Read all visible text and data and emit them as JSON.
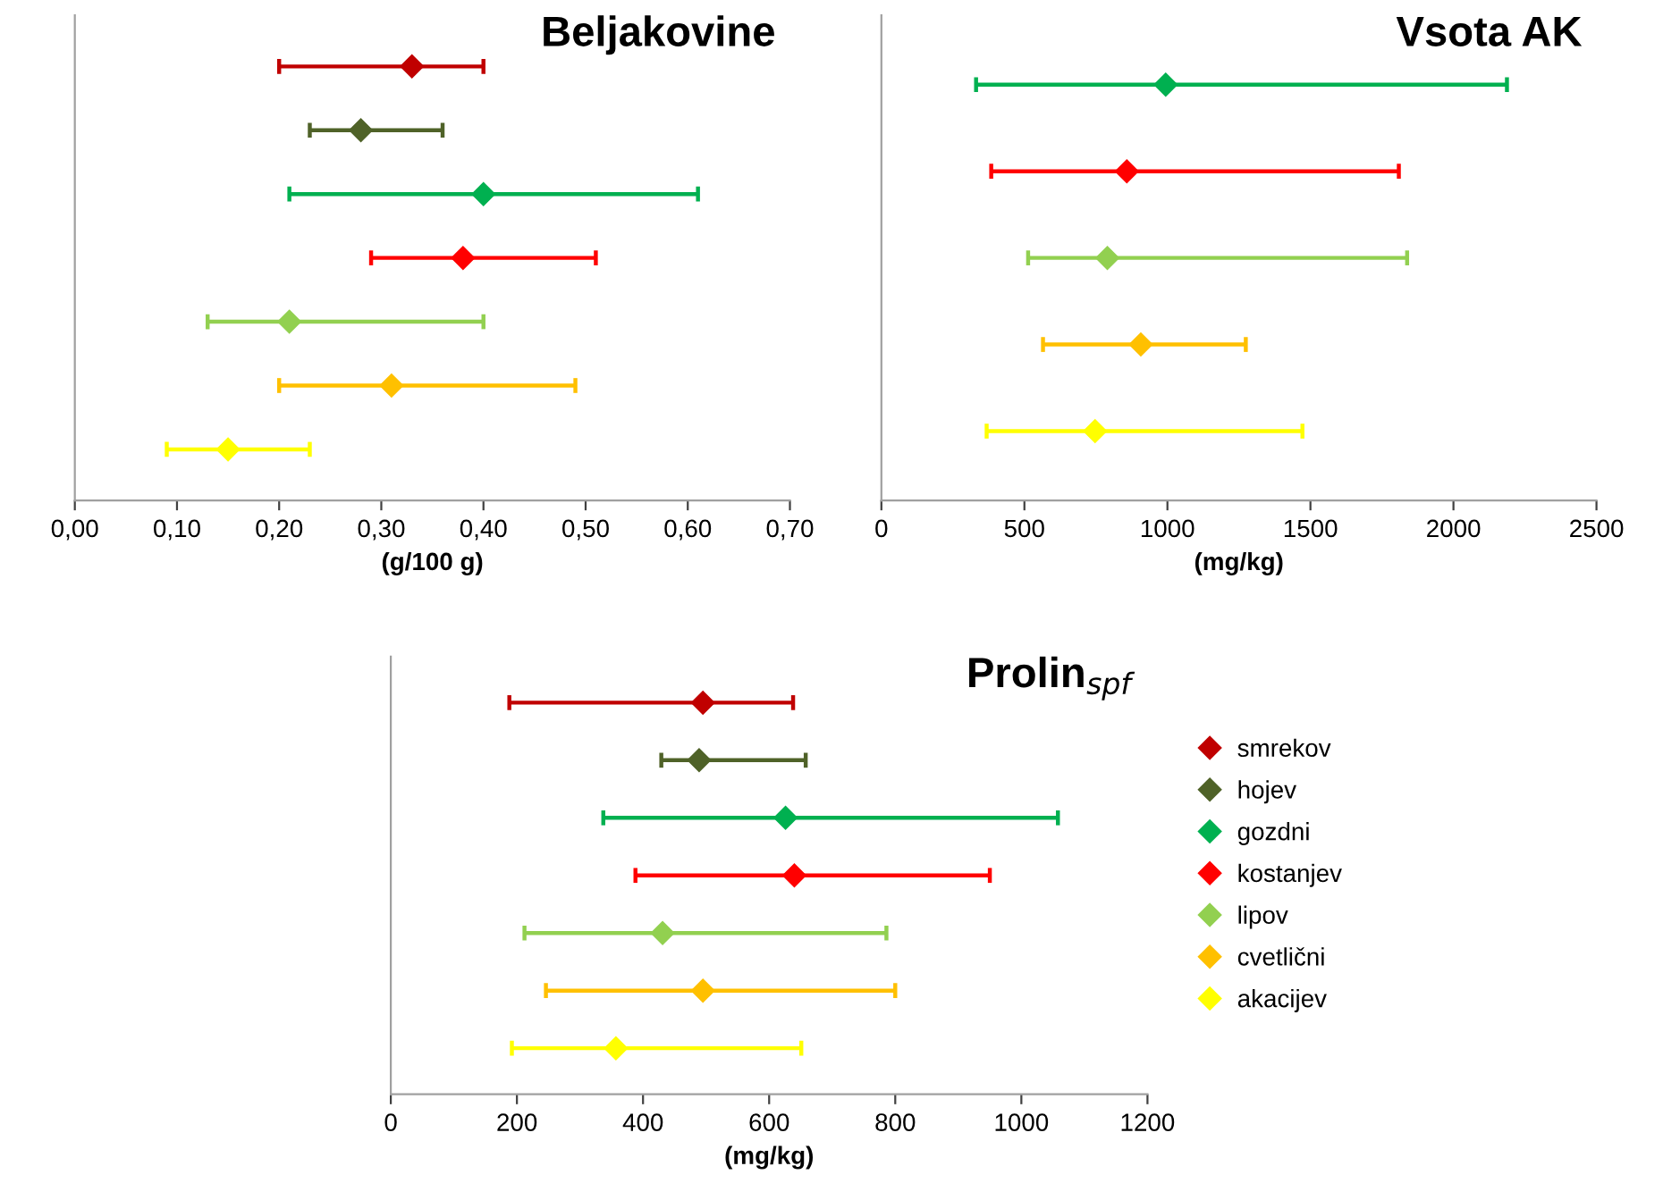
{
  "chart_data": [
    {
      "type": "scatter",
      "orientation": "horizontal",
      "title": "Beljakovine",
      "xlabel": "(g/100 g)",
      "categories": [
        null,
        null,
        null,
        null,
        null,
        null,
        null
      ],
      "marker": "diamond",
      "grid": false,
      "tick_labels": "x",
      "xlim": [
        0,
        0.7
      ],
      "xticks": [
        {
          "value": 0,
          "label": "0,00"
        },
        {
          "value": 0.1,
          "label": "0,10"
        },
        {
          "value": 0.2,
          "label": "0,20"
        },
        {
          "value": 0.3,
          "label": "0,30"
        },
        {
          "value": 0.4,
          "label": "0,40"
        },
        {
          "value": 0.5,
          "label": "0,50"
        },
        {
          "value": 0.6,
          "label": "0,60"
        },
        {
          "value": 0.7,
          "label": "0,70"
        }
      ],
      "series": [
        {
          "color": "#c00000",
          "values": [
            0.33,
            null,
            null,
            null,
            null,
            null,
            null
          ],
          "errors": [
            [
              0.2,
              0.4
            ],
            null,
            null,
            null,
            null,
            null,
            null
          ]
        },
        {
          "color": "#4f6228",
          "values": [
            null,
            0.28,
            null,
            null,
            null,
            null,
            null
          ],
          "errors": [
            null,
            [
              0.23,
              0.36
            ],
            null,
            null,
            null,
            null,
            null
          ]
        },
        {
          "color": "#00b050",
          "values": [
            null,
            null,
            0.4,
            null,
            null,
            null,
            null
          ],
          "errors": [
            null,
            null,
            [
              0.21,
              0.61
            ],
            null,
            null,
            null,
            null
          ]
        },
        {
          "color": "#ff0000",
          "values": [
            null,
            null,
            null,
            0.38,
            null,
            null,
            null
          ],
          "errors": [
            null,
            null,
            null,
            [
              0.29,
              0.51
            ],
            null,
            null,
            null
          ]
        },
        {
          "color": "#92d050",
          "values": [
            null,
            null,
            null,
            null,
            0.21,
            null,
            null
          ],
          "errors": [
            null,
            null,
            null,
            null,
            [
              0.13,
              0.4
            ],
            null,
            null
          ]
        },
        {
          "color": "#ffc000",
          "values": [
            null,
            null,
            null,
            null,
            null,
            0.31,
            null
          ],
          "errors": [
            null,
            null,
            null,
            null,
            null,
            [
              0.2,
              0.49
            ],
            null
          ]
        },
        {
          "color": "#ffff00",
          "values": [
            null,
            null,
            null,
            null,
            null,
            null,
            0.15
          ],
          "errors": [
            null,
            null,
            null,
            null,
            null,
            null,
            [
              0.09,
              0.23
            ]
          ]
        }
      ]
    },
    {
      "type": "scatter",
      "orientation": "horizontal",
      "title": "Vsota AK",
      "xlabel": "(mg/kg)",
      "categories": [
        null,
        null,
        null,
        null,
        null
      ],
      "marker": "diamond",
      "grid": false,
      "tick_labels": "x",
      "xlim": [
        0,
        2500
      ],
      "xticks": [
        0,
        500,
        1000,
        1500,
        2000,
        2500
      ],
      "series": [
        {
          "color": "#00b050",
          "values": [
            994,
            null,
            null,
            null,
            null
          ],
          "errors": [
            [
              331,
              2187
            ],
            null,
            null,
            null,
            null
          ]
        },
        {
          "color": "#ff0000",
          "values": [
            null,
            858,
            null,
            null,
            null
          ],
          "errors": [
            null,
            [
              384,
              1809
            ],
            null,
            null,
            null
          ]
        },
        {
          "color": "#92d050",
          "values": [
            null,
            null,
            790,
            null,
            null
          ],
          "errors": [
            null,
            null,
            [
              513,
              1838
            ],
            null,
            null
          ]
        },
        {
          "color": "#ffc000",
          "values": [
            null,
            null,
            null,
            907,
            null
          ],
          "errors": [
            null,
            null,
            null,
            [
              565,
              1274
            ],
            null
          ]
        },
        {
          "color": "#ffff00",
          "values": [
            null,
            null,
            null,
            null,
            747
          ],
          "errors": [
            null,
            null,
            null,
            null,
            [
              368,
              1472
            ]
          ]
        }
      ]
    },
    {
      "type": "scatter",
      "orientation": "horizontal",
      "title": "Prolin$_{spf}$",
      "xlabel": "(mg/kg)",
      "categories": [
        null,
        null,
        null,
        null,
        null,
        null,
        null
      ],
      "marker": "diamond",
      "grid": false,
      "tick_labels": "x",
      "legend": "right",
      "xlim": [
        0,
        1200
      ],
      "xticks": [
        0,
        200,
        400,
        600,
        800,
        1000,
        1200
      ],
      "series": [
        {
          "name": "smrekov",
          "color": "#c00000",
          "values": [
            495,
            null,
            null,
            null,
            null,
            null,
            null
          ],
          "errors": [
            [
              188,
              638
            ],
            null,
            null,
            null,
            null,
            null,
            null
          ]
        },
        {
          "name": "hojev",
          "color": "#4f6228",
          "values": [
            null,
            489,
            null,
            null,
            null,
            null,
            null
          ],
          "errors": [
            null,
            [
              429,
              658
            ],
            null,
            null,
            null,
            null,
            null
          ]
        },
        {
          "name": "gozdni",
          "color": "#00b050",
          "values": [
            null,
            null,
            626,
            null,
            null,
            null,
            null
          ],
          "errors": [
            null,
            null,
            [
              337,
              1058
            ],
            null,
            null,
            null,
            null
          ]
        },
        {
          "name": "kostanjev",
          "color": "#ff0000",
          "values": [
            null,
            null,
            null,
            640,
            null,
            null,
            null
          ],
          "errors": [
            null,
            null,
            null,
            [
              388,
              950
            ],
            null,
            null,
            null
          ]
        },
        {
          "name": "lipov",
          "color": "#92d050",
          "values": [
            null,
            null,
            null,
            null,
            431,
            null,
            null
          ],
          "errors": [
            null,
            null,
            null,
            null,
            [
              212,
              786
            ],
            null,
            null
          ]
        },
        {
          "name": "cvetlični",
          "color": "#ffc000",
          "values": [
            null,
            null,
            null,
            null,
            null,
            495,
            null
          ],
          "errors": [
            null,
            null,
            null,
            null,
            null,
            [
              246,
              800
            ],
            null
          ]
        },
        {
          "name": "akacijev",
          "color": "#ffff00",
          "values": [
            null,
            null,
            null,
            null,
            null,
            null,
            357
          ],
          "errors": [
            null,
            null,
            null,
            null,
            null,
            null,
            [
              192,
              651
            ]
          ]
        }
      ]
    }
  ]
}
